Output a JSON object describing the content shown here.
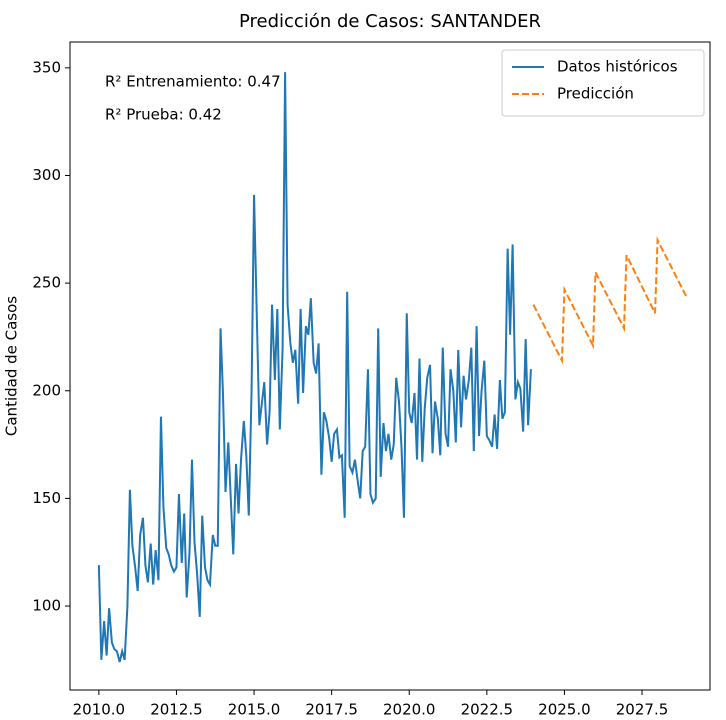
{
  "chart_data": {
    "type": "line",
    "title": "Predicción de Casos: SANTANDER",
    "ylabel": "Cantidad de Casos",
    "annotations": [
      "R² Entrenamiento: 0.47",
      "R² Prueba: 0.42"
    ],
    "legend": "upper right",
    "xlim": [
      2009.07,
      2029.69
    ],
    "ylim": [
      61,
      362
    ],
    "xticks": [
      {
        "value": 2010,
        "label": "2010.0"
      },
      {
        "value": 2012.5,
        "label": "2012.5"
      },
      {
        "value": 2015,
        "label": "2015.0"
      },
      {
        "value": 2017.5,
        "label": "2017.5"
      },
      {
        "value": 2020,
        "label": "2020.0"
      },
      {
        "value": 2022.5,
        "label": "2022.5"
      },
      {
        "value": 2025,
        "label": "2025.0"
      },
      {
        "value": 2027.5,
        "label": "2027.5"
      }
    ],
    "yticks": [
      100,
      150,
      200,
      250,
      300,
      350
    ],
    "series": [
      {
        "name": "Datos históricos",
        "color": "#1f77b4",
        "linestyle": "solid",
        "x": [
          2010.0,
          2010.08,
          2010.17,
          2010.25,
          2010.33,
          2010.42,
          2010.5,
          2010.58,
          2010.67,
          2010.75,
          2010.83,
          2010.92,
          2011.0,
          2011.08,
          2011.17,
          2011.25,
          2011.33,
          2011.42,
          2011.5,
          2011.58,
          2011.67,
          2011.75,
          2011.83,
          2011.92,
          2012.0,
          2012.08,
          2012.17,
          2012.25,
          2012.33,
          2012.42,
          2012.5,
          2012.58,
          2012.67,
          2012.75,
          2012.83,
          2012.92,
          2013.0,
          2013.08,
          2013.17,
          2013.25,
          2013.33,
          2013.42,
          2013.5,
          2013.58,
          2013.67,
          2013.75,
          2013.83,
          2013.92,
          2014.0,
          2014.08,
          2014.17,
          2014.25,
          2014.33,
          2014.42,
          2014.5,
          2014.58,
          2014.67,
          2014.75,
          2014.83,
          2014.92,
          2015.0,
          2015.08,
          2015.17,
          2015.25,
          2015.33,
          2015.42,
          2015.5,
          2015.58,
          2015.67,
          2015.75,
          2015.83,
          2015.92,
          2016.0,
          2016.08,
          2016.17,
          2016.25,
          2016.33,
          2016.42,
          2016.5,
          2016.58,
          2016.67,
          2016.75,
          2016.83,
          2016.92,
          2017.0,
          2017.08,
          2017.17,
          2017.25,
          2017.33,
          2017.42,
          2017.5,
          2017.58,
          2017.67,
          2017.75,
          2017.83,
          2017.92,
          2018.0,
          2018.08,
          2018.17,
          2018.25,
          2018.33,
          2018.42,
          2018.5,
          2018.58,
          2018.67,
          2018.75,
          2018.83,
          2018.92,
          2019.0,
          2019.08,
          2019.17,
          2019.25,
          2019.33,
          2019.42,
          2019.5,
          2019.58,
          2019.67,
          2019.75,
          2019.83,
          2019.92,
          2020.0,
          2020.08,
          2020.17,
          2020.25,
          2020.33,
          2020.42,
          2020.5,
          2020.58,
          2020.67,
          2020.75,
          2020.83,
          2020.92,
          2021.0,
          2021.08,
          2021.17,
          2021.25,
          2021.33,
          2021.42,
          2021.5,
          2021.58,
          2021.67,
          2021.75,
          2021.83,
          2021.92,
          2022.0,
          2022.08,
          2022.17,
          2022.25,
          2022.33,
          2022.42,
          2022.5,
          2022.58,
          2022.67,
          2022.75,
          2022.83,
          2022.92,
          2023.0,
          2023.08,
          2023.17,
          2023.25,
          2023.33,
          2023.42,
          2023.5,
          2023.58,
          2023.67,
          2023.75,
          2023.83,
          2023.92
        ],
        "values": [
          119,
          75,
          93,
          77,
          99,
          83,
          80,
          79,
          74,
          79,
          75,
          100,
          154,
          128,
          118,
          107,
          133,
          141,
          119,
          111,
          129,
          110,
          126,
          112,
          188,
          146,
          127,
          124,
          119,
          116,
          118,
          152,
          120,
          143,
          104,
          125,
          168,
          130,
          114,
          95,
          142,
          118,
          112,
          110,
          133,
          128,
          128,
          229,
          198,
          153,
          176,
          150,
          124,
          166,
          143,
          168,
          186,
          170,
          142,
          200,
          291,
          240,
          184,
          194,
          204,
          175,
          190,
          240,
          205,
          238,
          182,
          220,
          348,
          240,
          222,
          213,
          219,
          194,
          238,
          199,
          230,
          226,
          243,
          213,
          208,
          222,
          161,
          190,
          186,
          178,
          167,
          180,
          182,
          169,
          170,
          141,
          246,
          165,
          162,
          168,
          159,
          150,
          172,
          174,
          210,
          152,
          148,
          150,
          229,
          160,
          185,
          172,
          180,
          168,
          175,
          206,
          195,
          174,
          141,
          236,
          190,
          185,
          199,
          168,
          215,
          167,
          192,
          206,
          212,
          171,
          195,
          187,
          170,
          220,
          180,
          174,
          210,
          200,
          176,
          219,
          183,
          207,
          196,
          205,
          220,
          172,
          230,
          179,
          200,
          214,
          179,
          177,
          174,
          189,
          173,
          205,
          187,
          190,
          266,
          226,
          268,
          196,
          204,
          201,
          181,
          224,
          184,
          210
        ]
      },
      {
        "name": "Predicción",
        "color": "#ff7f0e",
        "linestyle": "dashed",
        "x": [
          2024.0,
          2024.92,
          2025.0,
          2025.92,
          2026.0,
          2026.92,
          2027.0,
          2027.92,
          2028.0,
          2028.92
        ],
        "values": [
          240,
          214,
          247,
          221,
          255,
          229,
          263,
          236,
          270,
          244
        ]
      }
    ]
  }
}
